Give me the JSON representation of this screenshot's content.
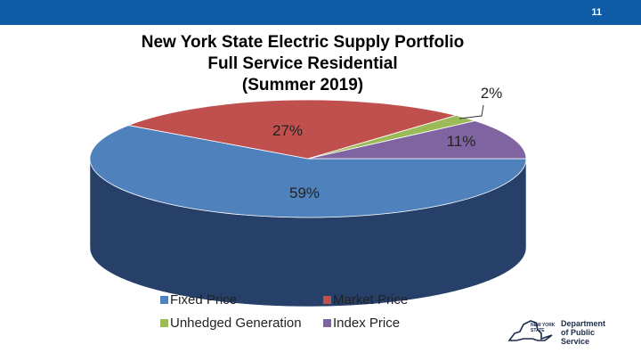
{
  "header": {
    "page_number": "11",
    "bar_color": "#0e5ba6"
  },
  "title_lines": [
    "New York State Electric Supply Portfolio",
    "Full Service Residential",
    "(Summer 2019)"
  ],
  "chart_data": {
    "type": "pie",
    "style": "3d",
    "title": "New York State Electric Supply Portfolio Full Service Residential (Summer 2019)",
    "categories": [
      "Fixed Price",
      "Market Price",
      "Unhedged Generation",
      "Index Price"
    ],
    "values": [
      59,
      27,
      2,
      11
    ],
    "data_labels": [
      "59%",
      "27%",
      "2%",
      "11%"
    ],
    "colors": [
      "#4f81bd",
      "#c0504d",
      "#9bbb59",
      "#8064a2"
    ],
    "side_colors": [
      "#26406a",
      "#7a2f2d",
      "#5f7a33",
      "#4e3b68"
    ],
    "legend_position": "bottom"
  },
  "logo": {
    "line1": "Department",
    "line2": "of Public Service",
    "state_text_1": "NEW YORK",
    "state_text_2": "STATE",
    "icon": "new-york-state-outline-icon"
  }
}
